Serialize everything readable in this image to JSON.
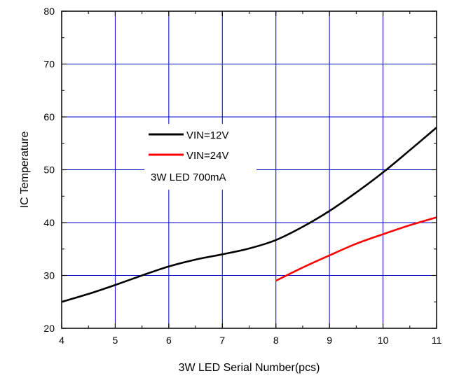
{
  "chart_data": {
    "type": "line",
    "xlabel": "3W LED Serial Number(pcs)",
    "ylabel": "IC Temperature",
    "xlim": [
      4,
      11
    ],
    "ylim": [
      20,
      80
    ],
    "xticks": [
      4,
      5,
      6,
      7,
      8,
      9,
      10,
      11
    ],
    "yticks": [
      20,
      30,
      40,
      50,
      60,
      70,
      80
    ],
    "grid": true,
    "grid_color": "#0000cc",
    "legend_position": "center-left",
    "legend_note": "3W LED 700mA",
    "series": [
      {
        "name": "VIN=12V",
        "color": "#000000",
        "x": [
          4,
          4.5,
          5,
          5.5,
          6,
          6.5,
          7,
          7.5,
          8,
          8.5,
          9,
          9.5,
          10,
          10.5,
          11
        ],
        "y": [
          25,
          26.5,
          28.2,
          30,
          31.7,
          33,
          34,
          35.1,
          36.7,
          39.2,
          42.2,
          45.7,
          49.5,
          53.7,
          58
        ]
      },
      {
        "name": "VIN=24V",
        "color": "#ff0000",
        "x": [
          8,
          8.5,
          9,
          9.5,
          10,
          10.5,
          11
        ],
        "y": [
          29,
          31.5,
          33.8,
          36,
          37.8,
          39.5,
          41
        ]
      }
    ]
  }
}
